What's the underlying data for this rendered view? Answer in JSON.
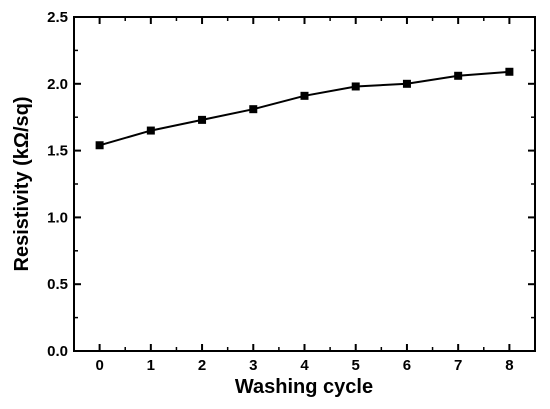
{
  "chart_data": {
    "type": "line",
    "title": "",
    "xlabel": "Washing cycle",
    "ylabel": "Resistivity (kΩ/sq)",
    "x": [
      0,
      1,
      2,
      3,
      4,
      5,
      6,
      7,
      8
    ],
    "xlim": [
      -0.5,
      8.5
    ],
    "ylim": [
      0.0,
      2.5
    ],
    "xticks": [
      "0",
      "1",
      "2",
      "3",
      "4",
      "5",
      "6",
      "7",
      "8"
    ],
    "yticks": [
      "0.0",
      "0.5",
      "1.0",
      "1.5",
      "2.0",
      "2.5"
    ],
    "series": [
      {
        "values": [
          1.54,
          1.65,
          1.73,
          1.81,
          1.91,
          1.98,
          2.0,
          2.06,
          2.09
        ],
        "color": "#000000",
        "marker": "square"
      }
    ],
    "grid": false,
    "legend": "none"
  }
}
